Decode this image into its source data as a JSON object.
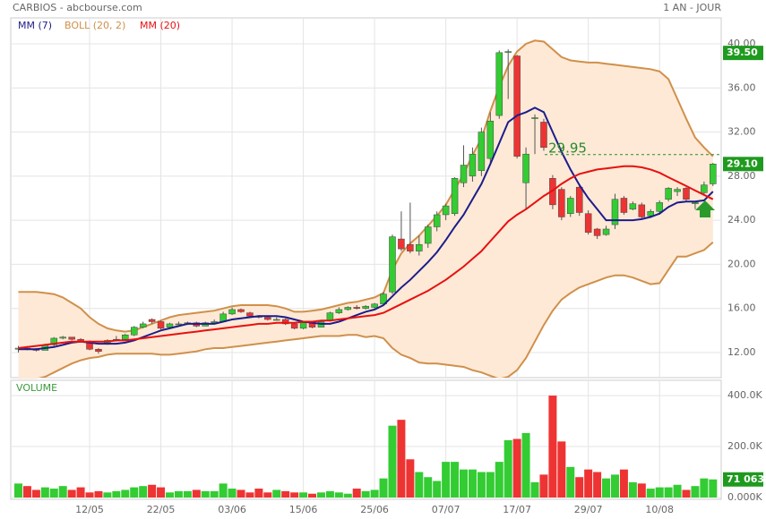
{
  "chart_data": {
    "type": "candlestick",
    "title": "CARBIOS - abcbourse.com",
    "period": "1 AN - JOUR",
    "volume_label": "VOLUME",
    "categories": [
      null,
      null,
      null,
      null,
      null,
      null,
      null,
      null,
      "12/05",
      null,
      null,
      null,
      null,
      null,
      null,
      null,
      "22/05",
      null,
      null,
      null,
      null,
      null,
      null,
      null,
      "03/06",
      null,
      null,
      null,
      null,
      null,
      null,
      null,
      "15/06",
      null,
      null,
      null,
      null,
      null,
      null,
      null,
      "25/06",
      null,
      null,
      null,
      null,
      null,
      null,
      null,
      "07/07",
      null,
      null,
      null,
      null,
      null,
      null,
      null,
      "17/07",
      null,
      null,
      null,
      null,
      null,
      null,
      null,
      "29/07",
      null,
      null,
      null,
      null,
      null,
      null,
      null,
      "10/08",
      null,
      null,
      null,
      null,
      null,
      null
    ],
    "open": [
      12.3,
      12.4,
      12.3,
      12.2,
      12.7,
      13.3,
      13.4,
      13.2,
      13.0,
      12.3,
      12.8,
      13.1,
      13.2,
      13.6,
      14.3,
      15.0,
      14.8,
      14.3,
      14.6,
      14.6,
      14.7,
      14.4,
      14.7,
      14.8,
      15.5,
      15.9,
      15.6,
      15.3,
      15.2,
      15.0,
      15.0,
      14.6,
      14.2,
      14.7,
      14.3,
      14.9,
      15.6,
      15.9,
      16.1,
      16.0,
      16.1,
      16.4,
      17.5,
      22.3,
      21.8,
      21.2,
      21.9,
      23.4,
      24.5,
      24.6,
      27.4,
      28.0,
      28.5,
      29.6,
      33.5,
      39.3,
      38.9,
      27.4,
      33.3,
      32.9,
      27.8,
      26.8,
      24.6,
      27.0,
      24.6,
      23.2,
      22.7,
      23.6,
      26.0,
      25.0,
      25.4,
      24.4,
      24.8,
      25.9,
      26.6,
      26.9,
      25.5,
      26.5,
      27.3
    ],
    "high": [
      12.6,
      12.5,
      12.4,
      12.8,
      13.4,
      13.5,
      13.4,
      13.3,
      13.1,
      12.4,
      13.2,
      13.5,
      13.7,
      14.4,
      14.8,
      15.1,
      14.9,
      14.7,
      14.8,
      14.8,
      14.8,
      14.8,
      15.0,
      15.7,
      16.1,
      16.0,
      15.7,
      15.4,
      15.3,
      15.2,
      15.1,
      14.7,
      14.8,
      14.8,
      14.9,
      15.7,
      16.1,
      16.2,
      16.3,
      16.3,
      16.5,
      17.5,
      22.7,
      24.8,
      25.6,
      22.6,
      23.6,
      24.8,
      25.5,
      27.9,
      30.8,
      30.6,
      32.4,
      33.8,
      39.4,
      39.5,
      39.0,
      30.6,
      33.6,
      33.2,
      28.1,
      27.0,
      26.2,
      27.3,
      24.9,
      23.3,
      23.5,
      26.4,
      26.2,
      25.7,
      25.6,
      25.0,
      25.8,
      27.0,
      27.0,
      27.0,
      25.7,
      27.5,
      29.2
    ],
    "low": [
      12.0,
      12.2,
      12.1,
      12.2,
      12.6,
      13.2,
      13.1,
      12.9,
      12.2,
      11.9,
      12.7,
      13.0,
      13.1,
      13.5,
      14.2,
      14.6,
      14.1,
      14.2,
      14.5,
      14.5,
      14.3,
      14.4,
      14.6,
      14.8,
      15.4,
      15.6,
      15.2,
      15.1,
      14.9,
      14.9,
      14.5,
      14.1,
      14.1,
      14.2,
      14.3,
      14.8,
      15.5,
      15.8,
      15.9,
      15.9,
      16.0,
      16.3,
      17.3,
      21.2,
      21.0,
      20.8,
      21.5,
      23.0,
      24.0,
      24.4,
      27.0,
      27.5,
      28.0,
      29.2,
      33.2,
      35.0,
      29.6,
      25.0,
      30.0,
      30.3,
      25.0,
      24.0,
      24.3,
      24.4,
      22.7,
      22.3,
      22.6,
      23.2,
      24.5,
      24.9,
      24.1,
      24.2,
      24.5,
      25.7,
      26.2,
      25.7,
      25.0,
      26.3,
      27.1
    ],
    "close": [
      12.4,
      12.3,
      12.2,
      12.7,
      13.3,
      13.4,
      13.2,
      13.0,
      12.3,
      12.1,
      13.1,
      13.2,
      13.6,
      14.3,
      14.6,
      14.8,
      14.2,
      14.6,
      14.6,
      14.7,
      14.4,
      14.7,
      14.8,
      15.5,
      15.9,
      15.7,
      15.3,
      15.2,
      15.0,
      15.0,
      14.6,
      14.2,
      14.7,
      14.3,
      14.8,
      15.6,
      15.9,
      16.1,
      16.0,
      16.2,
      16.4,
      17.3,
      22.5,
      21.4,
      21.2,
      21.8,
      23.4,
      24.5,
      25.3,
      27.8,
      29.0,
      30.0,
      32.0,
      33.0,
      39.2,
      39.3,
      29.8,
      30.0,
      33.3,
      30.6,
      25.4,
      24.3,
      26.0,
      24.7,
      22.9,
      22.6,
      23.2,
      25.9,
      24.7,
      25.5,
      24.3,
      24.8,
      25.6,
      26.9,
      26.8,
      25.9,
      25.6,
      27.2,
      29.1
    ],
    "volume": [
      55000,
      45000,
      30000,
      40000,
      35000,
      45000,
      30000,
      40000,
      20000,
      25000,
      20000,
      25000,
      30000,
      40000,
      45000,
      50000,
      40000,
      20000,
      25000,
      25000,
      30000,
      25000,
      25000,
      55000,
      35000,
      30000,
      20000,
      35000,
      20000,
      30000,
      25000,
      20000,
      20000,
      15000,
      20000,
      25000,
      20000,
      15000,
      35000,
      25000,
      30000,
      75000,
      282000,
      305000,
      150000,
      100000,
      80000,
      65000,
      140000,
      140000,
      110000,
      110000,
      100000,
      100000,
      140000,
      225000,
      230000,
      253000,
      60000,
      90000,
      400000,
      220000,
      120000,
      80000,
      110000,
      100000,
      75000,
      90000,
      110000,
      60000,
      55000,
      35000,
      40000,
      40000,
      50000,
      30000,
      45000,
      75000,
      71063
    ],
    "up_color": "#33cc33",
    "down_color": "#ee3333",
    "series": [
      {
        "name": "MM (7)",
        "color": "#1c1c8c",
        "values": [
          12.3,
          12.3,
          12.3,
          12.4,
          12.5,
          12.7,
          12.9,
          13.0,
          12.9,
          12.8,
          12.8,
          12.8,
          12.9,
          13.1,
          13.4,
          13.7,
          14.0,
          14.2,
          14.4,
          14.6,
          14.6,
          14.6,
          14.6,
          14.8,
          15.0,
          15.1,
          15.2,
          15.3,
          15.3,
          15.3,
          15.2,
          15.0,
          14.8,
          14.7,
          14.6,
          14.6,
          14.8,
          15.1,
          15.4,
          15.7,
          15.9,
          16.3,
          17.1,
          17.9,
          18.6,
          19.4,
          20.2,
          21.1,
          22.2,
          23.4,
          24.5,
          25.9,
          27.3,
          29.1,
          31.0,
          32.9,
          33.5,
          33.8,
          34.2,
          33.8,
          32.0,
          30.2,
          28.6,
          27.2,
          26.0,
          25.0,
          24.0,
          24.0,
          24.0,
          24.0,
          24.1,
          24.3,
          24.6,
          25.2,
          25.6,
          25.7,
          25.7,
          25.8,
          26.6
        ]
      },
      {
        "name": "BOLL (20, 2)",
        "color": "#d0904a",
        "fill": "#fde9d6",
        "upper": [
          17.5,
          17.5,
          17.5,
          17.4,
          17.3,
          17.0,
          16.5,
          16.0,
          15.2,
          14.6,
          14.2,
          14.0,
          13.9,
          14.0,
          14.3,
          14.6,
          14.9,
          15.2,
          15.4,
          15.5,
          15.6,
          15.7,
          15.8,
          16.0,
          16.2,
          16.3,
          16.3,
          16.3,
          16.3,
          16.2,
          16.0,
          15.7,
          15.7,
          15.8,
          15.9,
          16.1,
          16.3,
          16.5,
          16.6,
          16.8,
          17.0,
          17.4,
          19.5,
          21.0,
          21.9,
          22.6,
          23.5,
          24.4,
          25.4,
          26.8,
          28.2,
          29.9,
          31.4,
          33.9,
          36.1,
          38.0,
          39.3,
          40.0,
          40.3,
          40.2,
          39.5,
          38.8,
          38.5,
          38.4,
          38.3,
          38.3,
          38.2,
          38.1,
          38.0,
          37.9,
          37.8,
          37.7,
          37.5,
          36.8,
          35.0,
          33.2,
          31.5,
          30.6,
          29.8
        ],
        "lower": [
          9.6,
          9.6,
          9.6,
          9.8,
          10.2,
          10.6,
          11.0,
          11.3,
          11.5,
          11.6,
          11.8,
          11.9,
          11.9,
          11.9,
          11.9,
          11.9,
          11.8,
          11.8,
          11.9,
          12.0,
          12.1,
          12.3,
          12.4,
          12.4,
          12.5,
          12.6,
          12.7,
          12.8,
          12.9,
          13.0,
          13.1,
          13.2,
          13.3,
          13.4,
          13.5,
          13.5,
          13.5,
          13.6,
          13.6,
          13.4,
          13.5,
          13.3,
          12.4,
          11.8,
          11.5,
          11.1,
          11.0,
          11.0,
          10.9,
          10.8,
          10.7,
          10.4,
          10.2,
          9.9,
          9.6,
          9.8,
          10.4,
          11.5,
          13.0,
          14.5,
          15.8,
          16.8,
          17.4,
          17.9,
          18.2,
          18.5,
          18.8,
          19.0,
          19.0,
          18.8,
          18.5,
          18.2,
          18.3,
          19.5,
          20.7,
          20.7,
          21.0,
          21.3,
          22.0
        ]
      },
      {
        "name": "MM (20)",
        "color": "#e81010",
        "values": [
          12.4,
          12.5,
          12.6,
          12.7,
          12.8,
          12.9,
          13.0,
          13.0,
          13.0,
          13.0,
          13.0,
          13.1,
          13.1,
          13.2,
          13.3,
          13.4,
          13.5,
          13.6,
          13.7,
          13.8,
          13.9,
          14.0,
          14.1,
          14.2,
          14.3,
          14.4,
          14.5,
          14.6,
          14.6,
          14.7,
          14.7,
          14.7,
          14.8,
          14.8,
          14.9,
          14.9,
          15.0,
          15.1,
          15.2,
          15.3,
          15.4,
          15.6,
          16.0,
          16.4,
          16.8,
          17.2,
          17.6,
          18.1,
          18.6,
          19.2,
          19.8,
          20.5,
          21.2,
          22.1,
          23.0,
          23.9,
          24.5,
          25.0,
          25.6,
          26.2,
          26.7,
          27.3,
          27.8,
          28.2,
          28.4,
          28.6,
          28.7,
          28.8,
          28.9,
          28.9,
          28.8,
          28.6,
          28.3,
          27.9,
          27.5,
          27.1,
          26.7,
          26.3,
          25.9
        ]
      }
    ],
    "ylim": [
      9.75,
      41.5
    ],
    "yticks": [
      {
        "value": 12,
        "label": "12.00"
      },
      {
        "value": 16,
        "label": "16.00"
      },
      {
        "value": 20,
        "label": "20.00"
      },
      {
        "value": 24,
        "label": "24.00"
      },
      {
        "value": 28,
        "label": "28.00"
      },
      {
        "value": 32,
        "label": "32.00"
      },
      {
        "value": 36,
        "label": "36.00"
      },
      {
        "value": 40,
        "label": "40.00"
      }
    ],
    "vol_ylim": [
      -7000,
      460000
    ],
    "vol_ticks": [
      {
        "value": 0,
        "label": "0.000K"
      },
      {
        "value": 200000,
        "label": "200.0K"
      },
      {
        "value": 400000,
        "label": "400.0K"
      }
    ],
    "level_line": 29.95,
    "high_badge": {
      "value": 39.5,
      "label": "39.50"
    },
    "last_badge": {
      "value": 29.1,
      "label": "29.10"
    },
    "volume_badge": {
      "value": 71063,
      "label": "71 063"
    },
    "badge_color": "#1f9a1f",
    "grid": true
  }
}
